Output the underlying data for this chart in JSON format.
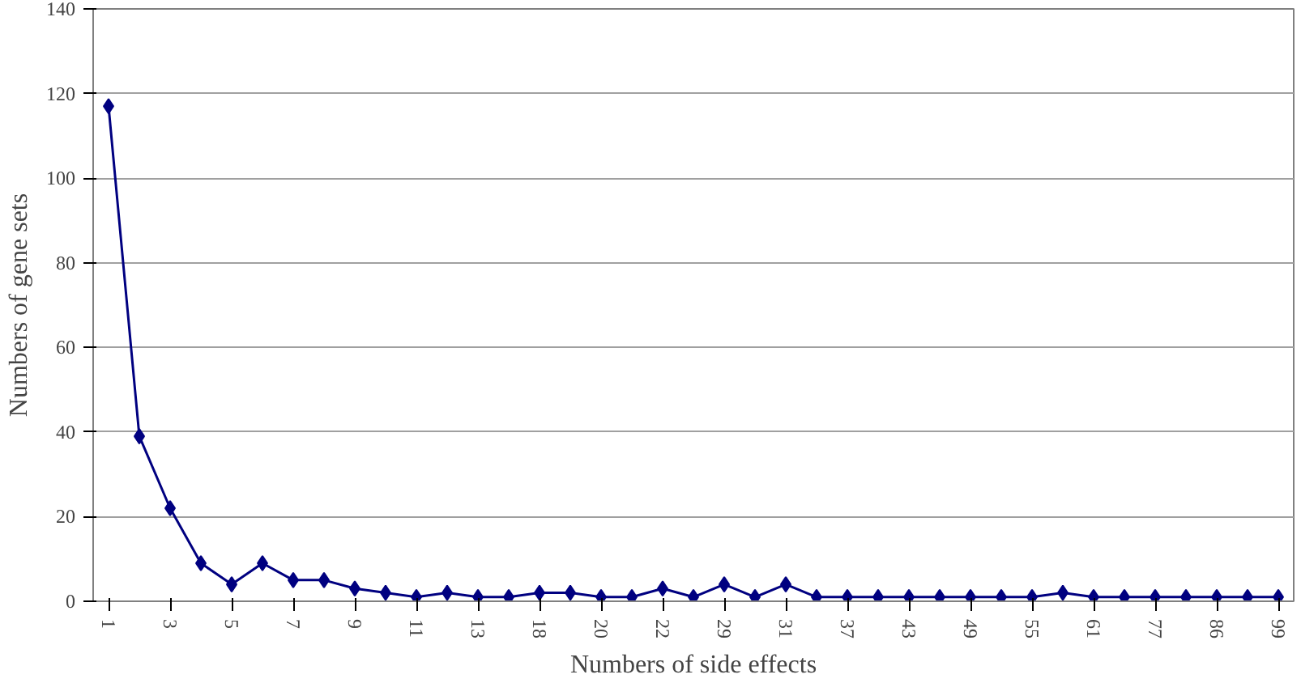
{
  "chart_data": {
    "type": "line",
    "xlabel": "Numbers of side effects",
    "ylabel": "Numbers of gene sets",
    "categories": [
      "1",
      null,
      "3",
      null,
      "5",
      null,
      "7",
      null,
      "9",
      null,
      "11",
      null,
      "13",
      null,
      "18",
      null,
      "20",
      null,
      "22",
      null,
      "29",
      null,
      "31",
      null,
      "37",
      null,
      "43",
      null,
      "49",
      null,
      "55",
      null,
      "61",
      null,
      "77",
      null,
      "86",
      null,
      "99"
    ],
    "series": [
      {
        "color": "#000080",
        "values": [
          117,
          39,
          22,
          9,
          4,
          9,
          5,
          5,
          3,
          2,
          1,
          2,
          1,
          1,
          2,
          2,
          1,
          1,
          3,
          1,
          4,
          1,
          4,
          1,
          1,
          1,
          1,
          1,
          1,
          1,
          1,
          2,
          1,
          1,
          1,
          1,
          1,
          1,
          1
        ]
      }
    ],
    "ylim": [
      0,
      140
    ],
    "yticks": [
      0,
      20,
      40,
      60,
      80,
      100,
      120,
      140
    ],
    "grid": "y",
    "marker": "diamond",
    "line_style": "solid"
  }
}
